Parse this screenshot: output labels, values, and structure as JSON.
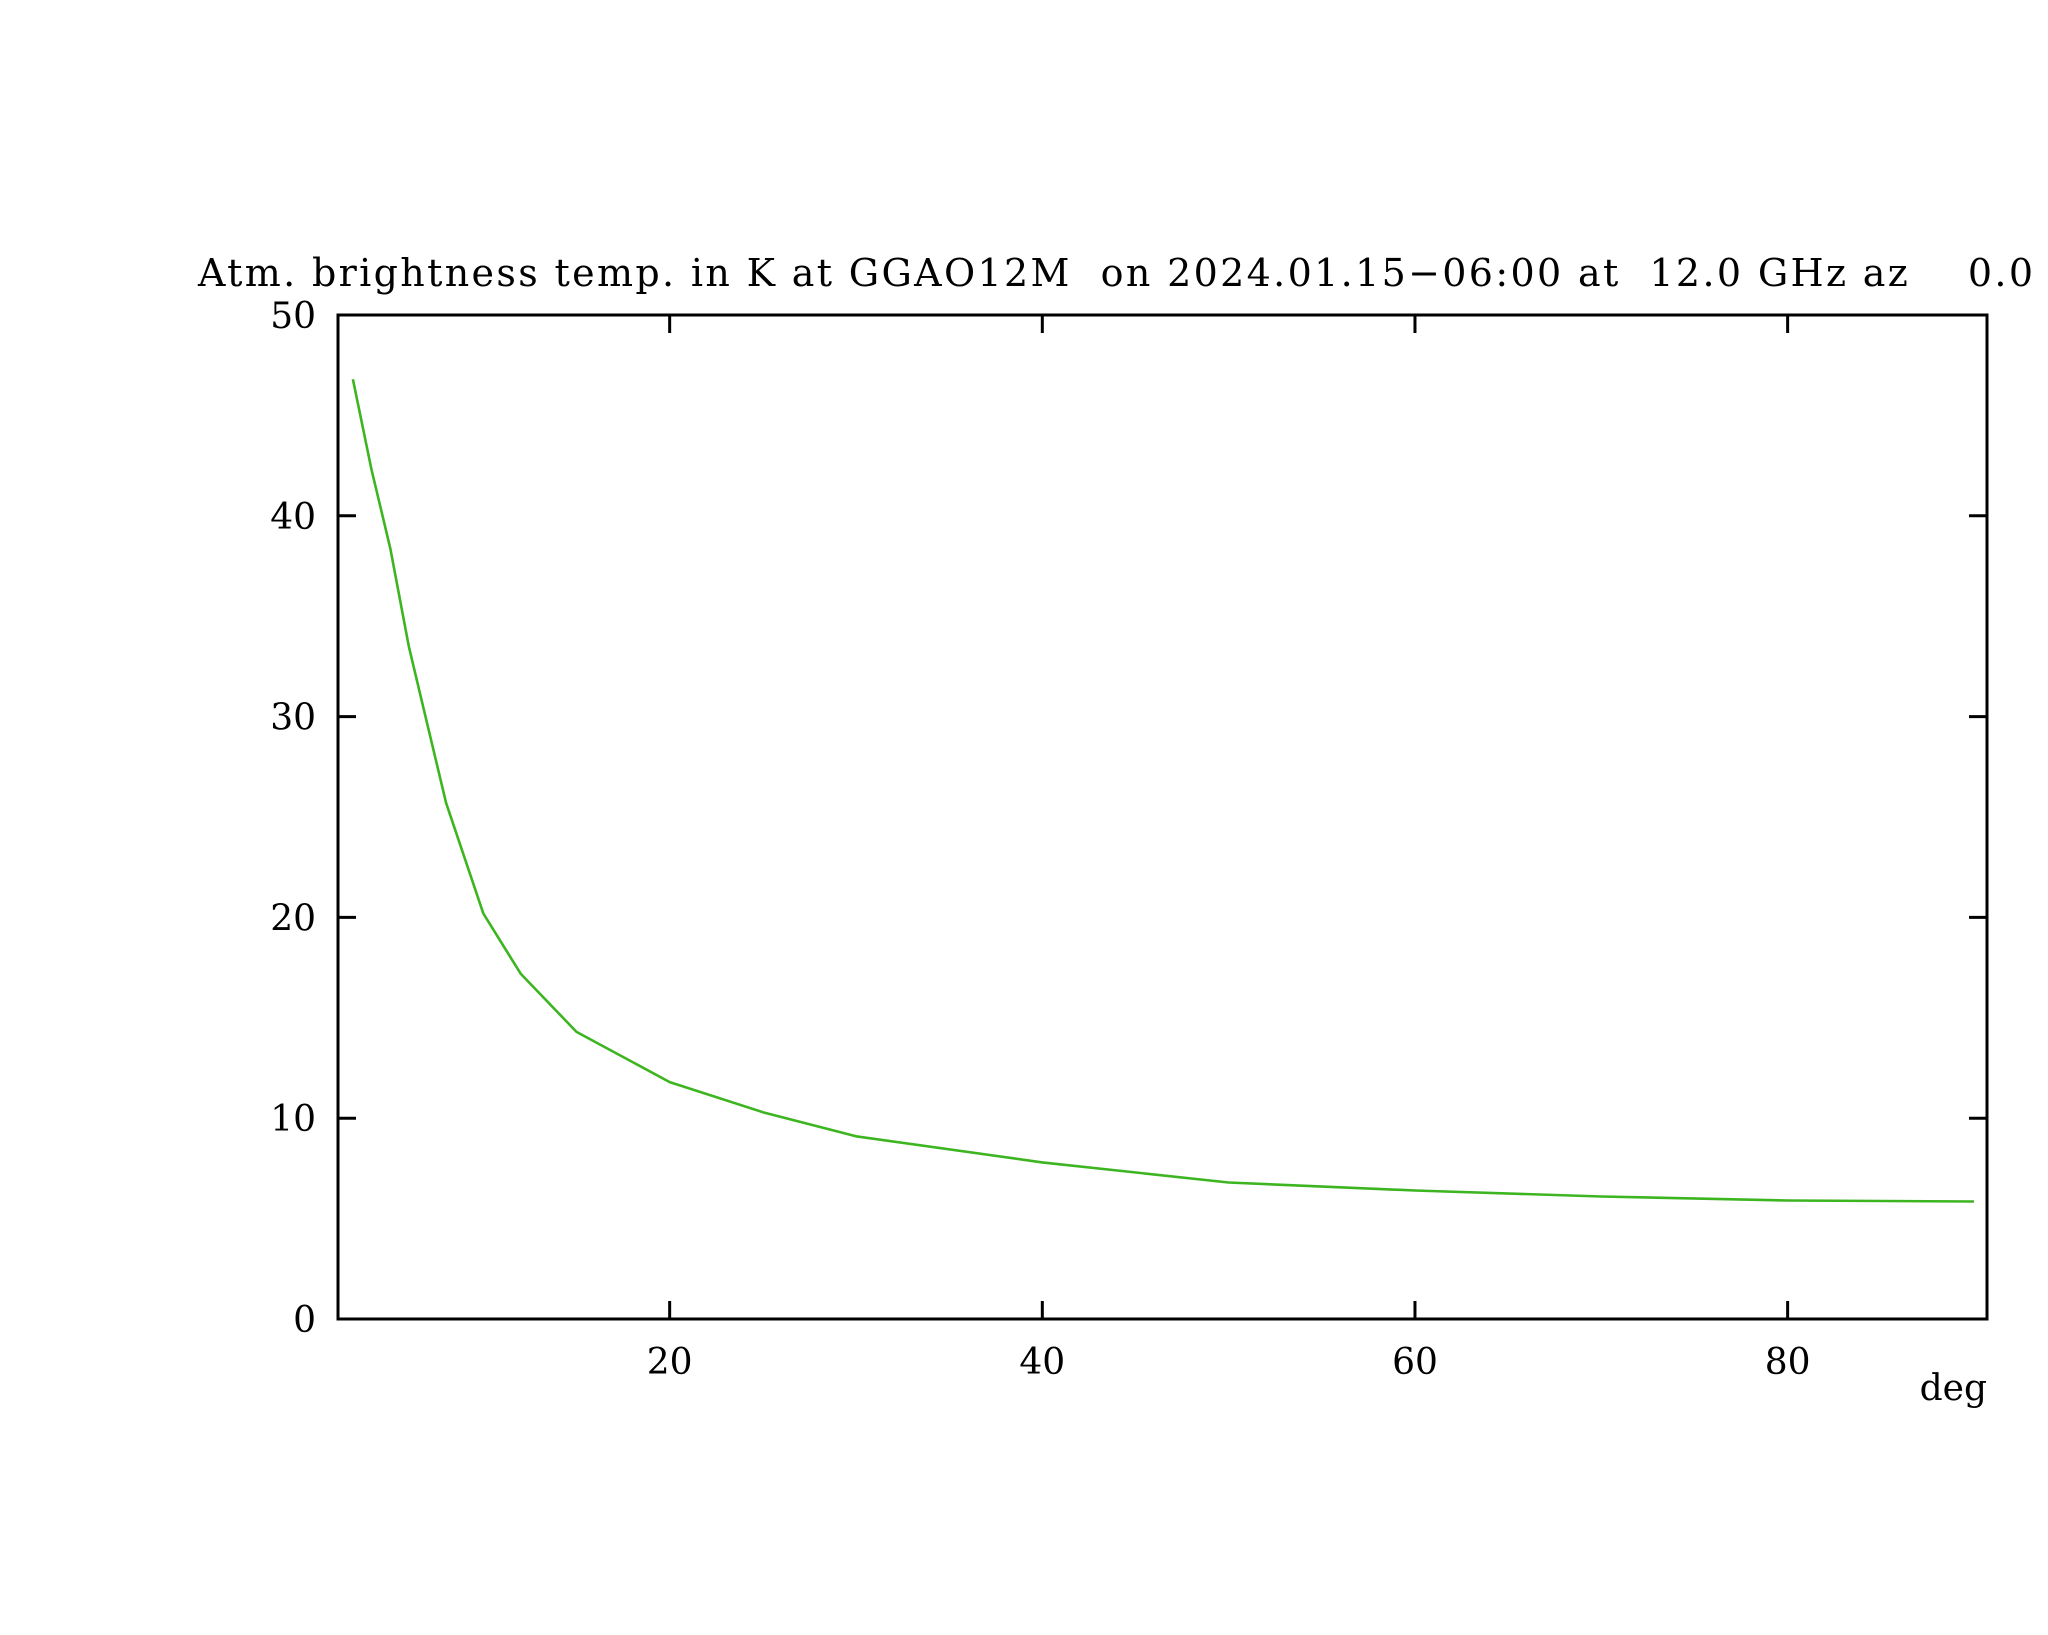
{
  "chart_data": {
    "type": "line",
    "title": "Atm. brightness temp. in K at GGAO12M  on 2024.01.15−06:00 at  12.0 GHz az    0.0",
    "x_label": "deg",
    "x": [
      3,
      4,
      5,
      6,
      7,
      8,
      10,
      12,
      15,
      20,
      25,
      30,
      40,
      50,
      60,
      70,
      80,
      90
    ],
    "series": [
      {
        "color": "#3cb521",
        "values": [
          46.8,
          42.3,
          38.4,
          33.5,
          29.6,
          25.7,
          20.2,
          17.2,
          14.3,
          11.8,
          10.3,
          9.1,
          7.8,
          6.8,
          6.4,
          6.1,
          5.9,
          5.85
        ]
      }
    ],
    "xlim": [
      2.2,
      90.7
    ],
    "xticks": [
      20,
      40,
      60,
      80
    ],
    "ylim": [
      0,
      50
    ],
    "yticks": [
      0,
      10,
      20,
      30,
      40,
      50
    ]
  }
}
